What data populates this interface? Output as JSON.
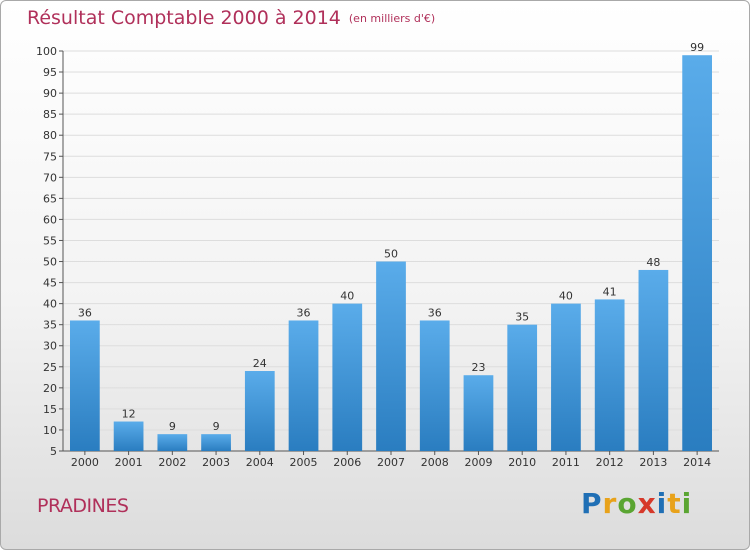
{
  "header": {
    "title": "Résultat Comptable 2000 à 2014",
    "unit": "(en milliers d'€)"
  },
  "footer": {
    "commune": "PRADINES",
    "brand": "Proxiti",
    "brand_letters": [
      {
        "ch": "P",
        "color": "#1f6fb5"
      },
      {
        "ch": "r",
        "color": "#e8a21a"
      },
      {
        "ch": "o",
        "color": "#5aa532"
      },
      {
        "ch": "x",
        "color": "#d6392a"
      },
      {
        "ch": "i",
        "color": "#1f6fb5"
      },
      {
        "ch": "t",
        "color": "#e8a21a"
      },
      {
        "ch": "i",
        "color": "#5aa532"
      }
    ]
  },
  "colors": {
    "bar_top": "#5aacea",
    "bar_bottom": "#2a7dc0",
    "title": "#b0305a",
    "grid": "#dddddd"
  },
  "chart_data": {
    "type": "bar",
    "title": "Résultat Comptable 2000 à 2014",
    "subtitle": "(en milliers d'€)",
    "xlabel": "",
    "ylabel": "",
    "categories": [
      "2000",
      "2001",
      "2002",
      "2003",
      "2004",
      "2005",
      "2006",
      "2007",
      "2008",
      "2009",
      "2010",
      "2011",
      "2012",
      "2013",
      "2014"
    ],
    "values": [
      36,
      12,
      9,
      9,
      24,
      36,
      40,
      50,
      36,
      23,
      35,
      40,
      41,
      48,
      99
    ],
    "ylim": [
      5,
      100
    ],
    "yticks": [
      5,
      10,
      15,
      20,
      25,
      30,
      35,
      40,
      45,
      50,
      55,
      60,
      65,
      70,
      75,
      80,
      85,
      90,
      95,
      100
    ],
    "grid": true,
    "data_labels": true
  }
}
